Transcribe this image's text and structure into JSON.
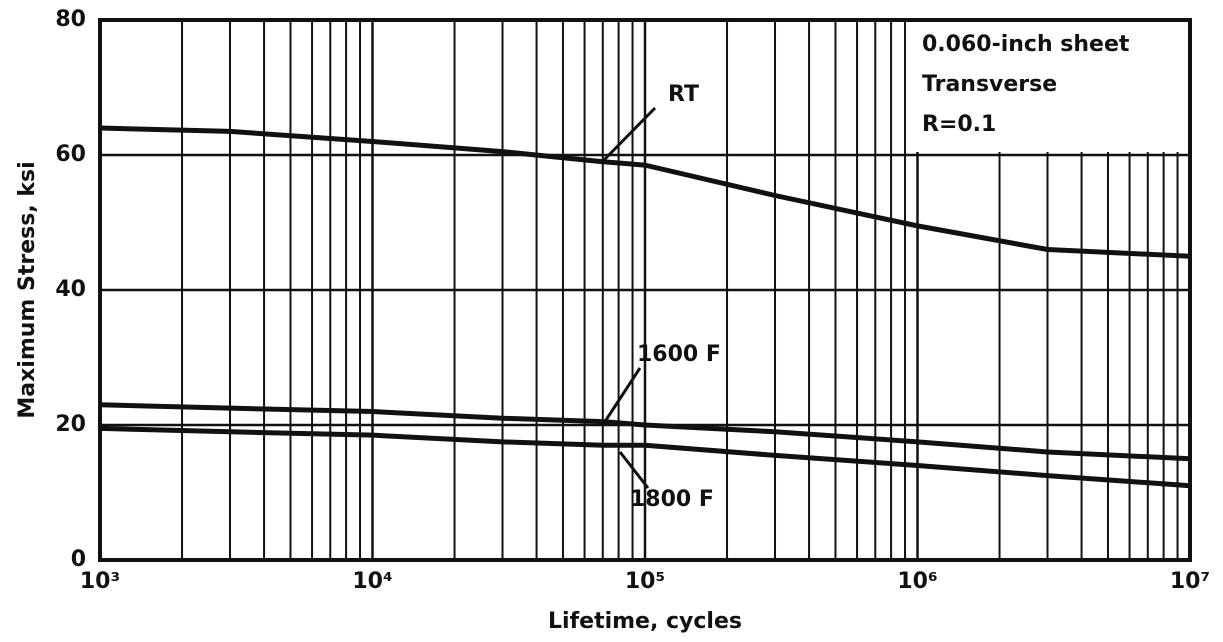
{
  "chart_data": {
    "type": "line",
    "xlabel": "Lifetime, cycles",
    "ylabel": "Maximum Stress, ksi",
    "annotations": [
      "0.060-inch sheet",
      "Transverse",
      "R=0.1"
    ],
    "x": [
      1000,
      3000,
      10000,
      30000,
      70000,
      100000,
      300000,
      1000000,
      3000000,
      10000000
    ],
    "series": [
      {
        "name": "RT",
        "color": "#111111",
        "values": [
          64,
          63.5,
          62,
          60.5,
          59,
          58.5,
          54,
          49.5,
          46,
          45
        ]
      },
      {
        "name": "1600 F",
        "color": "#111111",
        "values": [
          23,
          22.5,
          22,
          21,
          20.5,
          20,
          19,
          17.5,
          16,
          15
        ]
      },
      {
        "name": "1800 F",
        "color": "#111111",
        "values": [
          19.5,
          19,
          18.5,
          17.5,
          17,
          17,
          15.5,
          14,
          12.5,
          11
        ]
      }
    ],
    "xlim": [
      1000,
      10000000
    ],
    "xticks": [
      {
        "value": 1000,
        "label": "10³"
      },
      {
        "value": 10000,
        "label": "10⁴"
      },
      {
        "value": 100000,
        "label": "10⁵"
      },
      {
        "value": 1000000,
        "label": "10⁶"
      },
      {
        "value": 10000000,
        "label": "10⁷"
      }
    ],
    "xlog": true,
    "ylim": [
      0,
      80
    ],
    "yticks": [
      0,
      20,
      40,
      60,
      80
    ],
    "grid": true
  }
}
